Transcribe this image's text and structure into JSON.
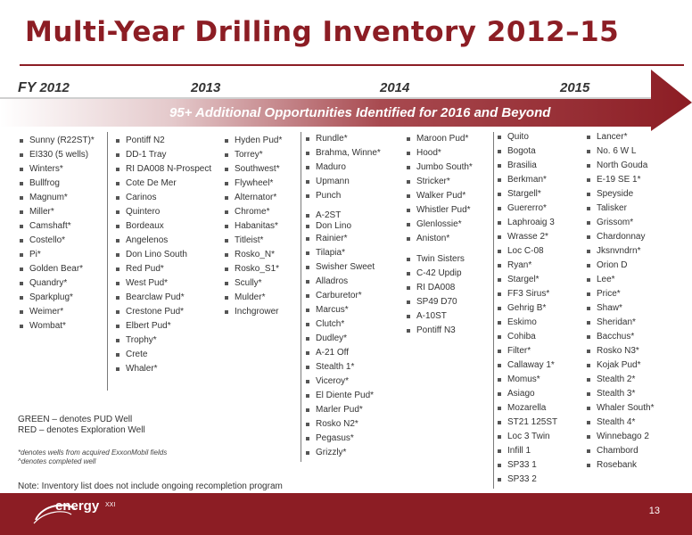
{
  "title": "Multi-Year Drilling Inventory 2012–15",
  "years": {
    "prefix": "FY",
    "y2012": "2012",
    "y2013": "2013",
    "y2014": "2014",
    "y2015": "2015"
  },
  "banner": "95+ Additional Opportunities Identified for 2016 and Beyond",
  "colors": {
    "brand": "#8c1d24",
    "banner_gradient_start": "#ffffff",
    "banner_gradient_end": "#8c1d24"
  },
  "columns": {
    "c1": [
      "Sunny (R22ST)*",
      "EI330 (5 wells)",
      "Winters*",
      "Bullfrog",
      "Magnum*",
      "Miller*",
      "Camshaft*",
      "Costello*",
      "Pi*",
      "Golden Bear*",
      "Quandry*",
      "Sparkplug*",
      "Weimer*",
      "Wombat*"
    ],
    "c2": [
      "Pontiff N2",
      "DD-1 Tray",
      "RI DA008 N-Prospect",
      "Cote De Mer",
      "Carinos",
      "Quintero",
      "Bordeaux",
      "Angelenos",
      "Don Lino South",
      "Red Pud*",
      "West Pud*",
      "Bearclaw Pud*",
      "Crestone Pud*",
      "Elbert Pud*",
      "Trophy*",
      "Crete",
      "Whaler*"
    ],
    "c3": [
      "Hyden Pud*",
      "Torrey*",
      "Southwest*",
      "Flywheel*",
      "Alternator*",
      "Chrome*",
      "Habanitas*",
      "Titleist*",
      "Rosko_N*",
      "Rosko_S1*",
      "Scully*",
      "Mulder*",
      "Inchgrower"
    ],
    "c4a": [
      "Rundle*",
      "Brahma, Winne*",
      "Maduro",
      "Upmann",
      "Punch"
    ],
    "c4b": [
      "A-2ST",
      "Don Lino"
    ],
    "c4c": [
      "Rainier*",
      "Tilapia*",
      "Swisher Sweet",
      "Alladros",
      "Carburetor*",
      "Marcus*",
      "Clutch*",
      "Dudley*",
      "A-21 Off",
      "Stealth 1*",
      "Viceroy*",
      "El Diente Pud*",
      "Marler Pud*",
      "Rosko N2*",
      "Pegasus*",
      "Grizzly*"
    ],
    "c5a": [
      "Maroon Pud*",
      "Hood*",
      "Jumbo South*",
      "Stricker*",
      "Walker Pud*",
      "Whistler Pud*",
      "Glenlossie*",
      "Aniston*"
    ],
    "c5b": [
      "Twin Sisters",
      "C-42 Updip",
      "RI DA008",
      "SP49 D70",
      "A-10ST",
      "Pontiff N3"
    ],
    "c6": [
      "Quito",
      "Bogota",
      "Brasilia",
      "Berkman*",
      "Stargell*",
      "Guererro*",
      "Laphroaig 3",
      "Wrasse 2*",
      "Loc C-08",
      "Ryan*",
      "Stargel*",
      "FF3 Sirus*",
      "Gehrig B*",
      "Eskimo",
      "Cohiba",
      "Filter*",
      "Callaway 1*",
      "Momus*",
      "Asiago",
      "Mozarella",
      "ST21 125ST",
      "Loc 3 Twin",
      "Infill 1",
      "SP33 1",
      "SP33 2"
    ],
    "c7": [
      "Lancer*",
      "No. 6 W L",
      "North Gouda",
      "E-19 SE 1*",
      "Speyside",
      "Talisker",
      "Grissom*",
      "Chardonnay",
      "Jksnvndrn*",
      "Orion D",
      "Lee*",
      "Price*",
      "Shaw*",
      "Sheridan*",
      "Bacchus*",
      "Rosko N3*",
      "Kojak Pud*",
      "Stealth 2*",
      "Stealth 3*",
      "Whaler South*",
      "Stealth 4*",
      "Winnebago 2",
      "Chambord",
      "Rosebank"
    ]
  },
  "legend": {
    "green": "GREEN – denotes PUD Well",
    "red": "RED – denotes Exploration Well"
  },
  "notes": {
    "acquired": "*denotes wells from acquired ExxonMobil fields",
    "completed": "^denotes completed well"
  },
  "note_line": "Note: Inventory list does not include ongoing recompletion program",
  "footer": {
    "logo": "energy",
    "logo_sub": "XXI",
    "page_number": "13"
  }
}
